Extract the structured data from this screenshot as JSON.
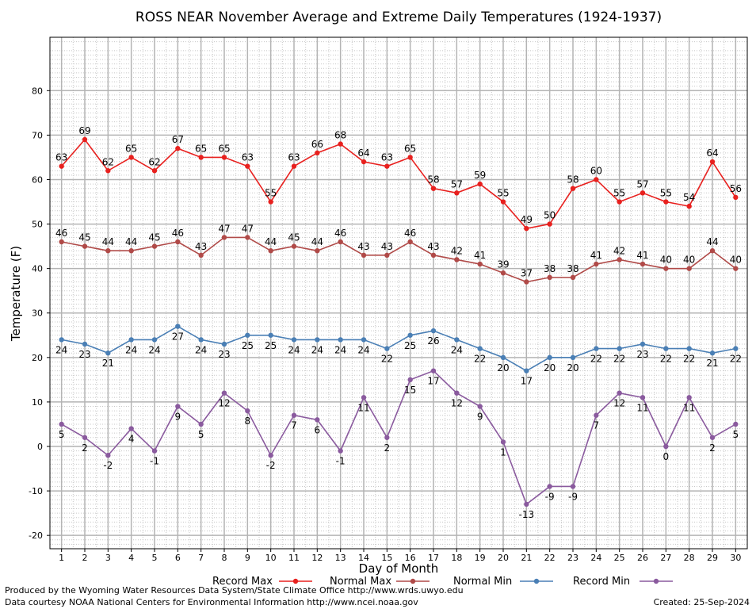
{
  "chart_data": {
    "type": "line",
    "title": "ROSS NEAR November Average and Extreme Daily Temperatures (1924-1937)",
    "xlabel": "Day of Month",
    "ylabel": "Temperature (F)",
    "x": [
      1,
      2,
      3,
      4,
      5,
      6,
      7,
      8,
      9,
      10,
      11,
      12,
      13,
      14,
      15,
      16,
      17,
      18,
      19,
      20,
      21,
      22,
      23,
      24,
      25,
      26,
      27,
      28,
      29,
      30
    ],
    "ylim": [
      -23,
      92
    ],
    "yticks": [
      -20,
      -10,
      0,
      10,
      20,
      30,
      40,
      50,
      60,
      70,
      80
    ],
    "grid": true,
    "legend_placement": "bottom",
    "series": [
      {
        "name": "Record Max",
        "color": "#e8201e",
        "label_pos": "above",
        "values": [
          63,
          69,
          62,
          65,
          62,
          67,
          65,
          65,
          63,
          55,
          63,
          66,
          68,
          64,
          63,
          65,
          58,
          57,
          59,
          55,
          49,
          50,
          58,
          60,
          55,
          57,
          55,
          54,
          64,
          56
        ]
      },
      {
        "name": "Normal Max",
        "color": "#b04a48",
        "label_pos": "above",
        "values": [
          46,
          45,
          44,
          44,
          45,
          46,
          43,
          47,
          47,
          44,
          45,
          44,
          46,
          43,
          43,
          46,
          43,
          42,
          41,
          39,
          37,
          38,
          38,
          41,
          42,
          41,
          40,
          40,
          44,
          40
        ]
      },
      {
        "name": "Normal Min",
        "color": "#4a7fb5",
        "label_pos": "below",
        "values": [
          24,
          23,
          21,
          24,
          24,
          27,
          24,
          23,
          25,
          25,
          24,
          24,
          24,
          24,
          22,
          25,
          26,
          24,
          22,
          20,
          17,
          20,
          20,
          22,
          22,
          23,
          22,
          22,
          21,
          22
        ]
      },
      {
        "name": "Record Min",
        "color": "#8a5a9e",
        "label_pos": "below",
        "values": [
          5,
          2,
          -2,
          4,
          -1,
          9,
          5,
          12,
          8,
          -2,
          7,
          6,
          -1,
          11,
          2,
          15,
          17,
          12,
          9,
          1,
          -13,
          -9,
          -9,
          7,
          12,
          11,
          0,
          11,
          2,
          5
        ]
      }
    ]
  },
  "footer": {
    "produced_by": "Produced by the Wyoming Water Resources Data System/State Climate Office http://www.wrds.uwyo.edu",
    "courtesy": "Data courtesy NOAA National Centers for Environmental Information http://www.ncei.noaa.gov",
    "created": "Created:  25-Sep-2024"
  }
}
